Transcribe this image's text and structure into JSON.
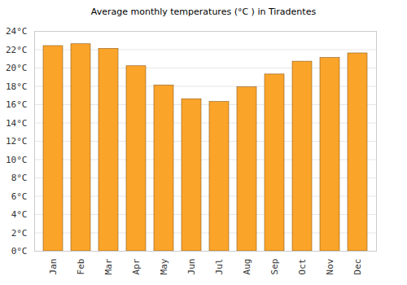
{
  "chart_data": {
    "type": "bar",
    "title": "Average monthly temperatures (°C ) in Tiradentes",
    "categories": [
      "Jan",
      "Feb",
      "Mar",
      "Apr",
      "May",
      "Jun",
      "Jul",
      "Aug",
      "Sep",
      "Oct",
      "Nov",
      "Dec"
    ],
    "values": [
      22.4,
      22.6,
      22.1,
      20.2,
      18.1,
      16.6,
      16.3,
      17.9,
      19.3,
      20.7,
      21.1,
      21.6
    ],
    "color": "#fba42a",
    "ylim": [
      0,
      24
    ],
    "yticks": [
      {
        "value": 0,
        "label": "0°C"
      },
      {
        "value": 2,
        "label": "2°C"
      },
      {
        "value": 4,
        "label": "4°C"
      },
      {
        "value": 6,
        "label": "6°C"
      },
      {
        "value": 8,
        "label": "8°C"
      },
      {
        "value": 10,
        "label": "10°C"
      },
      {
        "value": 12,
        "label": "12°C"
      },
      {
        "value": 14,
        "label": "14°C"
      },
      {
        "value": 16,
        "label": "16°C"
      },
      {
        "value": 18,
        "label": "18°C"
      },
      {
        "value": 20,
        "label": "20°C"
      },
      {
        "value": 22,
        "label": "22°C"
      },
      {
        "value": 24,
        "label": "24°C"
      }
    ],
    "grid": true
  }
}
